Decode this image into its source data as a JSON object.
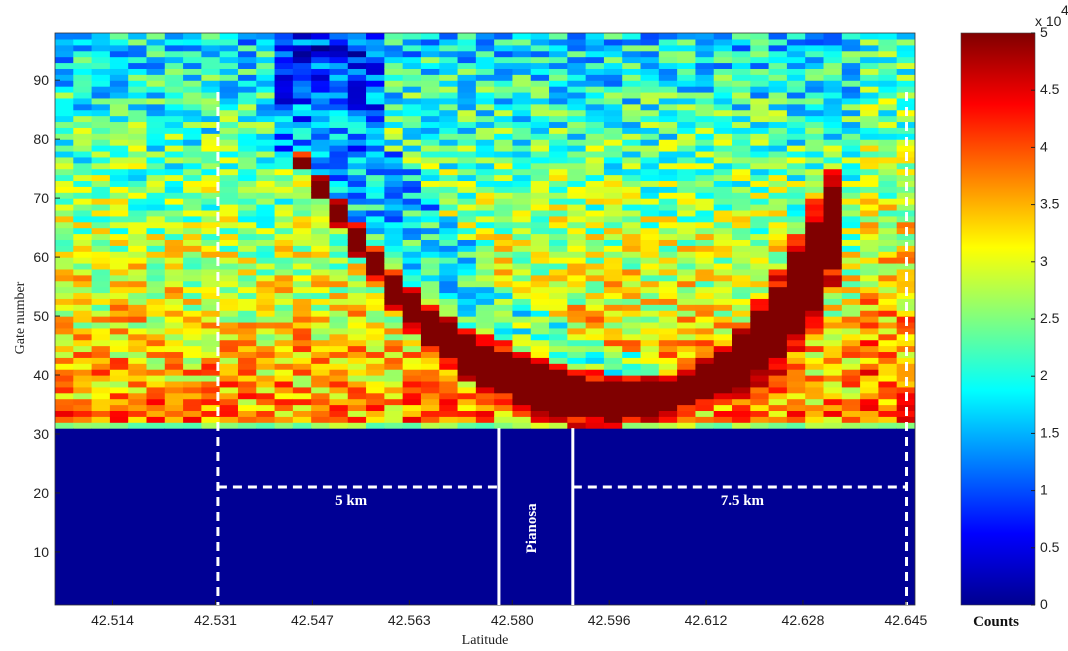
{
  "chart_data": {
    "type": "heatmap",
    "title": "",
    "xlabel": "Latitude",
    "ylabel": "Gate number",
    "x_ticks": [
      "42.514",
      "42.531",
      "42.547",
      "42.563",
      "42.580",
      "42.596",
      "42.612",
      "42.628",
      "42.645"
    ],
    "y_ticks": [
      "10",
      "20",
      "30",
      "40",
      "50",
      "60",
      "70",
      "80",
      "90"
    ],
    "xlim": [
      42.5045,
      42.6465
    ],
    "ylim": [
      1,
      98
    ],
    "colormap": "jet",
    "colorbar": {
      "label": "Counts",
      "ticks": [
        "0",
        "0.5",
        "1",
        "1.5",
        "2",
        "2.5",
        "3",
        "3.5",
        "4",
        "4.5",
        "5"
      ],
      "exponent_label": "x 10",
      "exponent_power": "4",
      "range": [
        0,
        50000
      ]
    },
    "shadow_below_gate": 31,
    "strong_echo_band": [
      {
        "lat": 42.545,
        "gate_low": 75,
        "gate_high": 78
      },
      {
        "lat": 42.552,
        "gate_low": 64,
        "gate_high": 69
      },
      {
        "lat": 42.56,
        "gate_low": 52,
        "gate_high": 58
      },
      {
        "lat": 42.566,
        "gate_low": 44,
        "gate_high": 52
      },
      {
        "lat": 42.575,
        "gate_low": 37,
        "gate_high": 47
      },
      {
        "lat": 42.585,
        "gate_low": 32,
        "gate_high": 43
      },
      {
        "lat": 42.596,
        "gate_low": 31,
        "gate_high": 40
      },
      {
        "lat": 42.607,
        "gate_low": 33,
        "gate_high": 40
      },
      {
        "lat": 42.617,
        "gate_low": 36,
        "gate_high": 47
      },
      {
        "lat": 42.625,
        "gate_low": 41,
        "gate_high": 60
      },
      {
        "lat": 42.63,
        "gate_low": 48,
        "gate_high": 70
      },
      {
        "lat": 42.633,
        "gate_low": 55,
        "gate_high": 75
      }
    ],
    "markers": [
      {
        "name": "dashed-left",
        "lat": 42.5314,
        "style": "dashed",
        "gate_from": 1,
        "gate_to": 88
      },
      {
        "name": "solid-left",
        "lat": 42.5778,
        "style": "solid",
        "gate_from": 1,
        "gate_to": 31
      },
      {
        "name": "solid-right",
        "lat": 42.59,
        "style": "solid",
        "gate_from": 1,
        "gate_to": 31
      },
      {
        "name": "dashed-right",
        "lat": 42.6451,
        "style": "dashed",
        "gate_from": 1,
        "gate_to": 88
      }
    ],
    "distance_lines": [
      {
        "lat_from": 42.5314,
        "lat_to": 42.5778,
        "gate": 21
      },
      {
        "lat_from": 42.59,
        "lat_to": 42.6451,
        "gate": 21
      }
    ],
    "annotations": [
      {
        "text": "5 km",
        "lat": 42.5534,
        "gate": 18
      },
      {
        "text": "Pianosa",
        "lat": 42.5839,
        "gate": 14,
        "vertical": true
      },
      {
        "text": "7.5 km",
        "lat": 42.618,
        "gate": 18
      }
    ]
  }
}
